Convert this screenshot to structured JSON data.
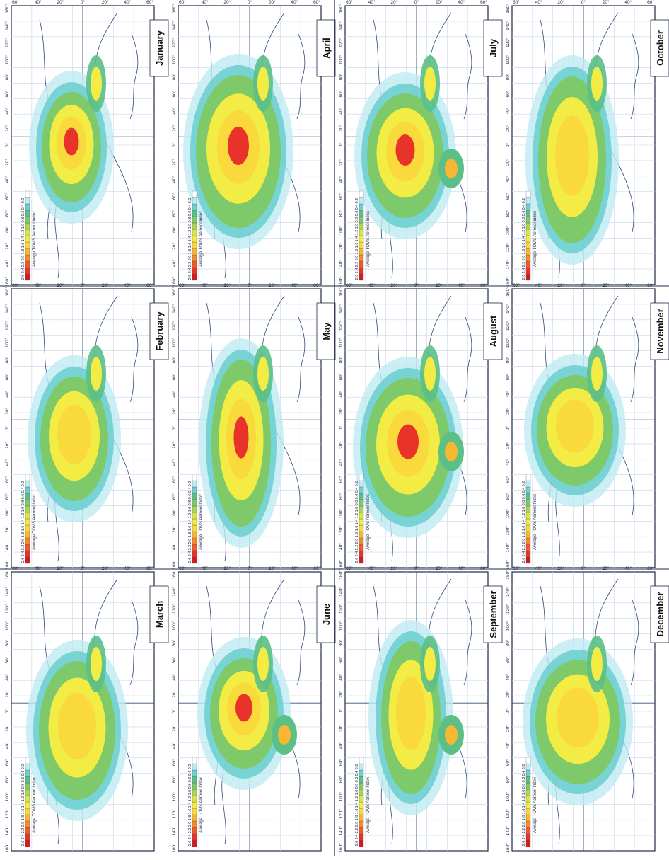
{
  "figure": {
    "months": [
      "January",
      "February",
      "March",
      "April",
      "May",
      "June",
      "July",
      "August",
      "September",
      "October",
      "November",
      "December"
    ],
    "legend_title": "Average TOMS Aerosol Index",
    "legend_values": [
      "2.6",
      "2.4",
      "2.2",
      "2.0",
      "1.8",
      "1.6",
      "1.4",
      "1.2",
      "1.0",
      "0.8",
      "0.6",
      "0.4",
      "0.2"
    ],
    "legend_colors": [
      "#d7191c",
      "#e8332a",
      "#f05a2a",
      "#f58a2f",
      "#f7b733",
      "#f9d93b",
      "#f2ec45",
      "#d6e64b",
      "#a8d65a",
      "#7ec96a",
      "#5bbf86",
      "#6fcfd0",
      "#bfeaf2",
      "#ffffff"
    ],
    "lon_labels": [
      "160°",
      "140°",
      "120°",
      "100°",
      "80°",
      "60°",
      "40°",
      "20°",
      "0°",
      "20°",
      "40°",
      "60°",
      "80°",
      "100°",
      "120°",
      "140°",
      "160°"
    ],
    "lat_labels": [
      "60°",
      "40°",
      "20°",
      "0°",
      "20°",
      "40°",
      "60°"
    ]
  }
}
